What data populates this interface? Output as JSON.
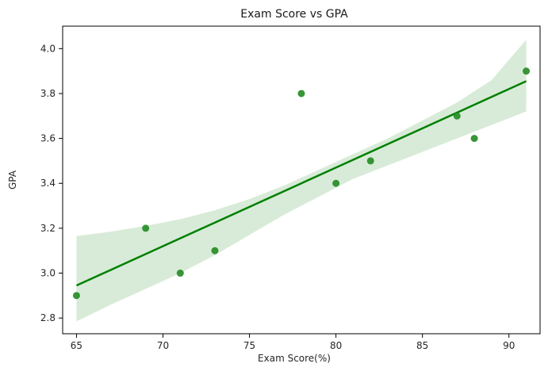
{
  "chart_data": {
    "type": "scatter",
    "title": "Exam Score vs GPA",
    "xlabel": "Exam Score(%)",
    "ylabel": "GPA",
    "xlim": [
      64.2,
      91.8
    ],
    "ylim": [
      2.73,
      4.1
    ],
    "xticks": [
      65,
      70,
      75,
      80,
      85,
      90
    ],
    "yticks": [
      2.8,
      3.0,
      3.2,
      3.4,
      3.6,
      3.8,
      4.0
    ],
    "xtick_labels": [
      "65",
      "70",
      "75",
      "80",
      "85",
      "90"
    ],
    "ytick_labels": [
      "2.8",
      "3.0",
      "3.2",
      "3.4",
      "3.6",
      "3.8",
      "4.0"
    ],
    "grid": false,
    "points": [
      {
        "x": 65,
        "y": 2.9
      },
      {
        "x": 69,
        "y": 3.2
      },
      {
        "x": 71,
        "y": 3.0
      },
      {
        "x": 73,
        "y": 3.1
      },
      {
        "x": 78,
        "y": 3.8
      },
      {
        "x": 80,
        "y": 3.4
      },
      {
        "x": 82,
        "y": 3.5
      },
      {
        "x": 87,
        "y": 3.7
      },
      {
        "x": 88,
        "y": 3.6
      },
      {
        "x": 91,
        "y": 3.9
      }
    ],
    "regression_line": {
      "x": [
        65,
        91
      ],
      "y": [
        2.945,
        3.855
      ]
    },
    "confidence_band": {
      "x": [
        65,
        67,
        69,
        71,
        73,
        75,
        77,
        79,
        81,
        83,
        85,
        87,
        89,
        91
      ],
      "upper": [
        3.165,
        3.185,
        3.21,
        3.24,
        3.28,
        3.33,
        3.39,
        3.46,
        3.53,
        3.6,
        3.68,
        3.76,
        3.86,
        4.04
      ],
      "lower": [
        2.785,
        2.86,
        2.93,
        3.0,
        3.08,
        3.17,
        3.26,
        3.34,
        3.42,
        3.48,
        3.54,
        3.6,
        3.66,
        3.72
      ]
    },
    "colors": {
      "points": "#228B22",
      "line": "#008000",
      "band": "#D6EAD6"
    }
  }
}
